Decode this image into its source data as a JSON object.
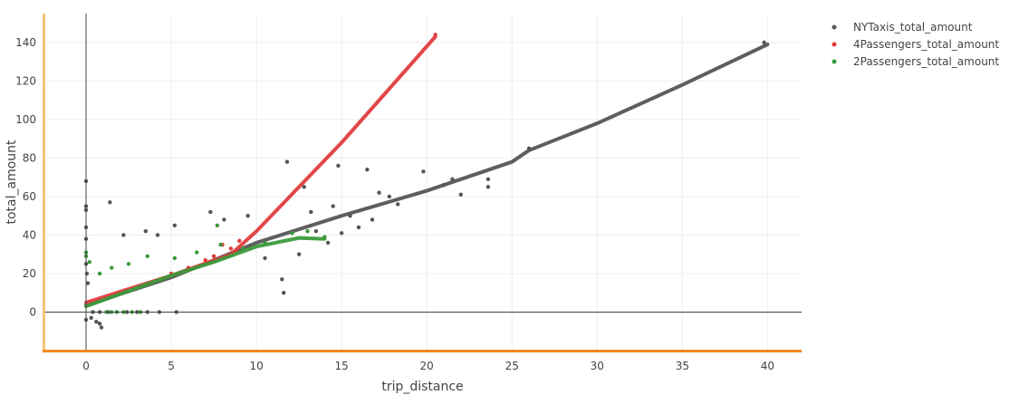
{
  "chart_data": {
    "type": "scatter",
    "xlabel": "trip_distance",
    "ylabel": "total_amount",
    "xlim": [
      -2.5,
      42
    ],
    "ylim": [
      -20,
      155
    ],
    "x_ticks": [
      0,
      5,
      10,
      15,
      20,
      25,
      30,
      35,
      40
    ],
    "y_ticks": [
      0,
      20,
      40,
      60,
      80,
      100,
      120,
      140
    ],
    "grid": true,
    "legend_position": "top-right",
    "series": [
      {
        "name": "NYTaxis_total_amount",
        "color": "#555555",
        "trend": [
          [
            0,
            3.5
          ],
          [
            5,
            18
          ],
          [
            10,
            36
          ],
          [
            15,
            50
          ],
          [
            20,
            63
          ],
          [
            25,
            78
          ],
          [
            26,
            84
          ],
          [
            30,
            98
          ],
          [
            35,
            118
          ],
          [
            40,
            139
          ]
        ],
        "points": [
          [
            0,
            68
          ],
          [
            0,
            55
          ],
          [
            0,
            53
          ],
          [
            0,
            44
          ],
          [
            0,
            38
          ],
          [
            0,
            25
          ],
          [
            0.05,
            20
          ],
          [
            0.1,
            15
          ],
          [
            0,
            -4
          ],
          [
            0.3,
            -3
          ],
          [
            0.6,
            -5
          ],
          [
            0.8,
            -6
          ],
          [
            0.9,
            -8
          ],
          [
            1.4,
            57
          ],
          [
            2.2,
            40
          ],
          [
            3.5,
            42
          ],
          [
            4.2,
            40
          ],
          [
            5.2,
            45
          ],
          [
            7.3,
            52
          ],
          [
            8.1,
            48
          ],
          [
            9.5,
            50
          ],
          [
            11.8,
            78
          ],
          [
            12.8,
            65
          ],
          [
            13.2,
            52
          ],
          [
            14.5,
            55
          ],
          [
            14.8,
            76
          ],
          [
            16.5,
            74
          ],
          [
            17.2,
            62
          ],
          [
            17.8,
            60
          ],
          [
            18.3,
            56
          ],
          [
            19.8,
            73
          ],
          [
            21,
            66
          ],
          [
            21.5,
            69
          ],
          [
            22,
            61
          ],
          [
            23.6,
            69
          ],
          [
            23.6,
            65
          ],
          [
            26,
            85
          ],
          [
            39.8,
            140
          ],
          [
            11.5,
            17
          ],
          [
            11.6,
            10
          ],
          [
            10.5,
            28
          ],
          [
            12.5,
            30
          ],
          [
            13.5,
            42
          ],
          [
            14.2,
            36
          ],
          [
            15.0,
            41
          ],
          [
            16.0,
            44
          ],
          [
            16.8,
            48
          ],
          [
            15.5,
            50
          ],
          [
            0.4,
            0
          ],
          [
            0.8,
            0
          ],
          [
            1.3,
            0
          ],
          [
            1.8,
            0
          ],
          [
            2.4,
            0
          ],
          [
            3.0,
            0
          ],
          [
            3.6,
            0
          ],
          [
            4.3,
            0
          ],
          [
            5.3,
            0
          ]
        ]
      },
      {
        "name": "4Passengers_total_amount",
        "color": "#e03c3c",
        "trend": [
          [
            0,
            5
          ],
          [
            5,
            19
          ],
          [
            8.5,
            30
          ],
          [
            10,
            42
          ],
          [
            15,
            88
          ],
          [
            20.5,
            143
          ]
        ],
        "points": [
          [
            20.5,
            144
          ],
          [
            5,
            20
          ],
          [
            6,
            23
          ],
          [
            7,
            27
          ],
          [
            7.5,
            29
          ],
          [
            8,
            35
          ],
          [
            8.5,
            33
          ],
          [
            9,
            37
          ]
        ]
      },
      {
        "name": "2Passengers_total_amount",
        "color": "#3a9a3a",
        "trend": [
          [
            0,
            3
          ],
          [
            2.5,
            11
          ],
          [
            5,
            19
          ],
          [
            7.5,
            26
          ],
          [
            10,
            34
          ],
          [
            12.5,
            38.5
          ],
          [
            14,
            38
          ]
        ],
        "points": [
          [
            0,
            31
          ],
          [
            0,
            29
          ],
          [
            0.2,
            26
          ],
          [
            1.2,
            0
          ],
          [
            1.5,
            0
          ],
          [
            1.8,
            0
          ],
          [
            2.2,
            0
          ],
          [
            2.7,
            0
          ],
          [
            3.2,
            0
          ],
          [
            0.8,
            20
          ],
          [
            1.5,
            23
          ],
          [
            2.5,
            25
          ],
          [
            3.6,
            29
          ],
          [
            5.2,
            28
          ],
          [
            6.5,
            31
          ],
          [
            7.7,
            45
          ],
          [
            7.9,
            35
          ],
          [
            9.2,
            33
          ],
          [
            10.5,
            36
          ],
          [
            12.1,
            41
          ],
          [
            13,
            42
          ],
          [
            14,
            39
          ]
        ]
      }
    ]
  }
}
